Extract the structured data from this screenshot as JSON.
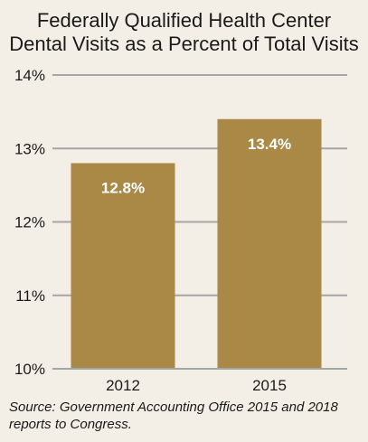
{
  "chart_data": {
    "type": "bar",
    "title_lines": [
      "Federally Qualified Health Center",
      "Dental Visits as a Percent of Total Visits"
    ],
    "categories": [
      "2012",
      "2015"
    ],
    "values": [
      12.8,
      13.4
    ],
    "data_labels": [
      "12.8%",
      "13.4%"
    ],
    "ylim": [
      10,
      14
    ],
    "yticks": [
      10,
      11,
      12,
      13,
      14
    ],
    "ytick_labels": [
      "10%",
      "11%",
      "12%",
      "13%",
      "14%"
    ],
    "xlabel": "",
    "ylabel": "",
    "grid": true,
    "legend": "none",
    "bar_color": "#a98945",
    "grid_color": "#a6a6a6",
    "background_color": "#f4efe6",
    "source": "Source: Government Accounting Office 2015 and 2018 reports to Congress."
  }
}
